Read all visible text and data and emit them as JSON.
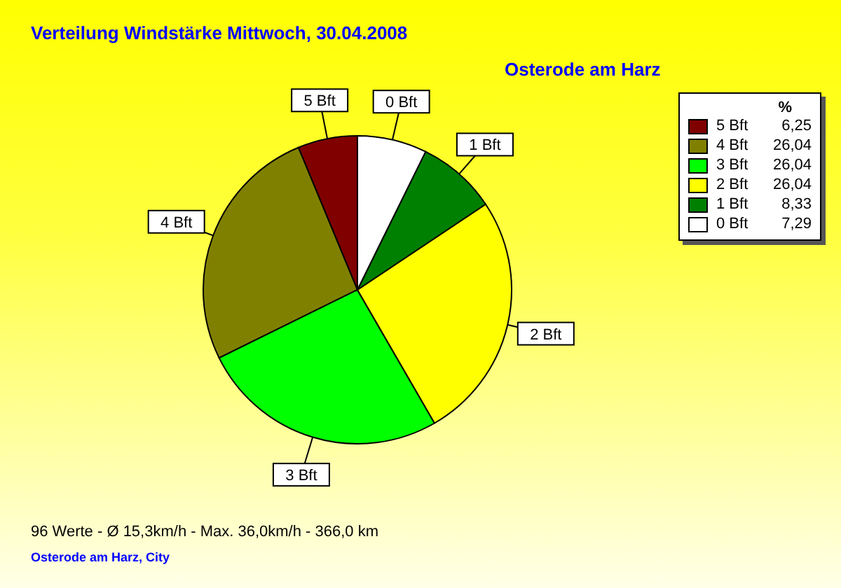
{
  "chart_data": {
    "type": "pie",
    "title": "Verteilung Windstärke  Mittwoch, 30.04.2008",
    "subtitle": "Osterode am Harz",
    "legend_title": "%",
    "legend": "top right",
    "categories": [
      "5 Bft",
      "4 Bft",
      "3 Bft",
      "2 Bft",
      "1 Bft",
      "0 Bft"
    ],
    "values": [
      6.25,
      26.04,
      26.04,
      26.04,
      8.33,
      7.29
    ],
    "value_labels": [
      "6,25",
      "26,04",
      "26,04",
      "26,04",
      "8,33",
      "7,29"
    ],
    "colors": [
      "#800000",
      "#808000",
      "#00ff00",
      "#ffff00",
      "#008000",
      "#ffffff"
    ],
    "annotations": [
      "96 Werte   -   Ø 15,3km/h  -  Max. 36,0km/h   -   366,0 km",
      "Osterode am Harz, City"
    ]
  }
}
